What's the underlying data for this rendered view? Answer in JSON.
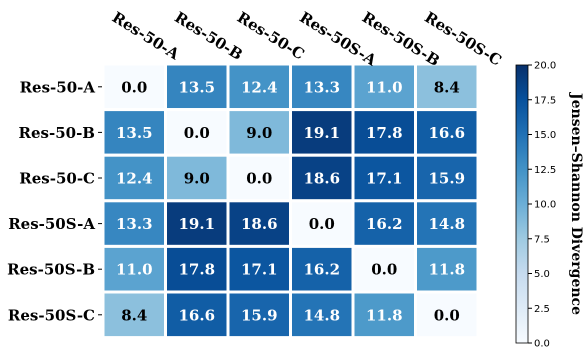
{
  "chart_data": {
    "type": "heatmap",
    "title": "",
    "x_categories": [
      "Res-50-A",
      "Res-50-B",
      "Res-50-C",
      "Res-50S-A",
      "Res-50S-B",
      "Res-50S-C"
    ],
    "y_categories": [
      "Res-50-A",
      "Res-50-B",
      "Res-50-C",
      "Res-50S-A",
      "Res-50S-B",
      "Res-50S-C"
    ],
    "values": [
      [
        0.0,
        13.5,
        12.4,
        13.3,
        11.0,
        8.4
      ],
      [
        13.5,
        0.0,
        9.0,
        19.1,
        17.8,
        16.6
      ],
      [
        12.4,
        9.0,
        0.0,
        18.6,
        17.1,
        15.9
      ],
      [
        13.3,
        19.1,
        18.6,
        0.0,
        16.2,
        14.8
      ],
      [
        11.0,
        17.8,
        17.1,
        16.2,
        0.0,
        11.8
      ],
      [
        8.4,
        16.6,
        15.9,
        14.8,
        11.8,
        0.0
      ]
    ],
    "value_labels": [
      [
        "0.0",
        "13.5",
        "12.4",
        "13.3",
        "11.0",
        "8.4"
      ],
      [
        "13.5",
        "0.0",
        "9.0",
        "19.1",
        "17.8",
        "16.6"
      ],
      [
        "12.4",
        "9.0",
        "0.0",
        "18.6",
        "17.1",
        "15.9"
      ],
      [
        "13.3",
        "19.1",
        "18.6",
        "0.0",
        "16.2",
        "14.8"
      ],
      [
        "11.0",
        "17.8",
        "17.1",
        "16.2",
        "0.0",
        "11.8"
      ],
      [
        "8.4",
        "16.6",
        "15.9",
        "14.8",
        "11.8",
        "0.0"
      ]
    ],
    "colorbar": {
      "label": "Jensen–Shannon Divergence",
      "range": [
        0.0,
        20.0
      ],
      "ticks": [
        "0.0",
        "2.5",
        "5.0",
        "7.5",
        "10.0",
        "12.5",
        "15.0",
        "17.5",
        "20.0"
      ],
      "colormap": "Blues",
      "colors": [
        "#f7fbff",
        "#deebf7",
        "#c6dbef",
        "#9ecae1",
        "#6baed6",
        "#4292c6",
        "#2171b5",
        "#08519c",
        "#08306b"
      ]
    },
    "grid": false,
    "x_tick_position": "top",
    "x_tick_rotation": "angled"
  }
}
